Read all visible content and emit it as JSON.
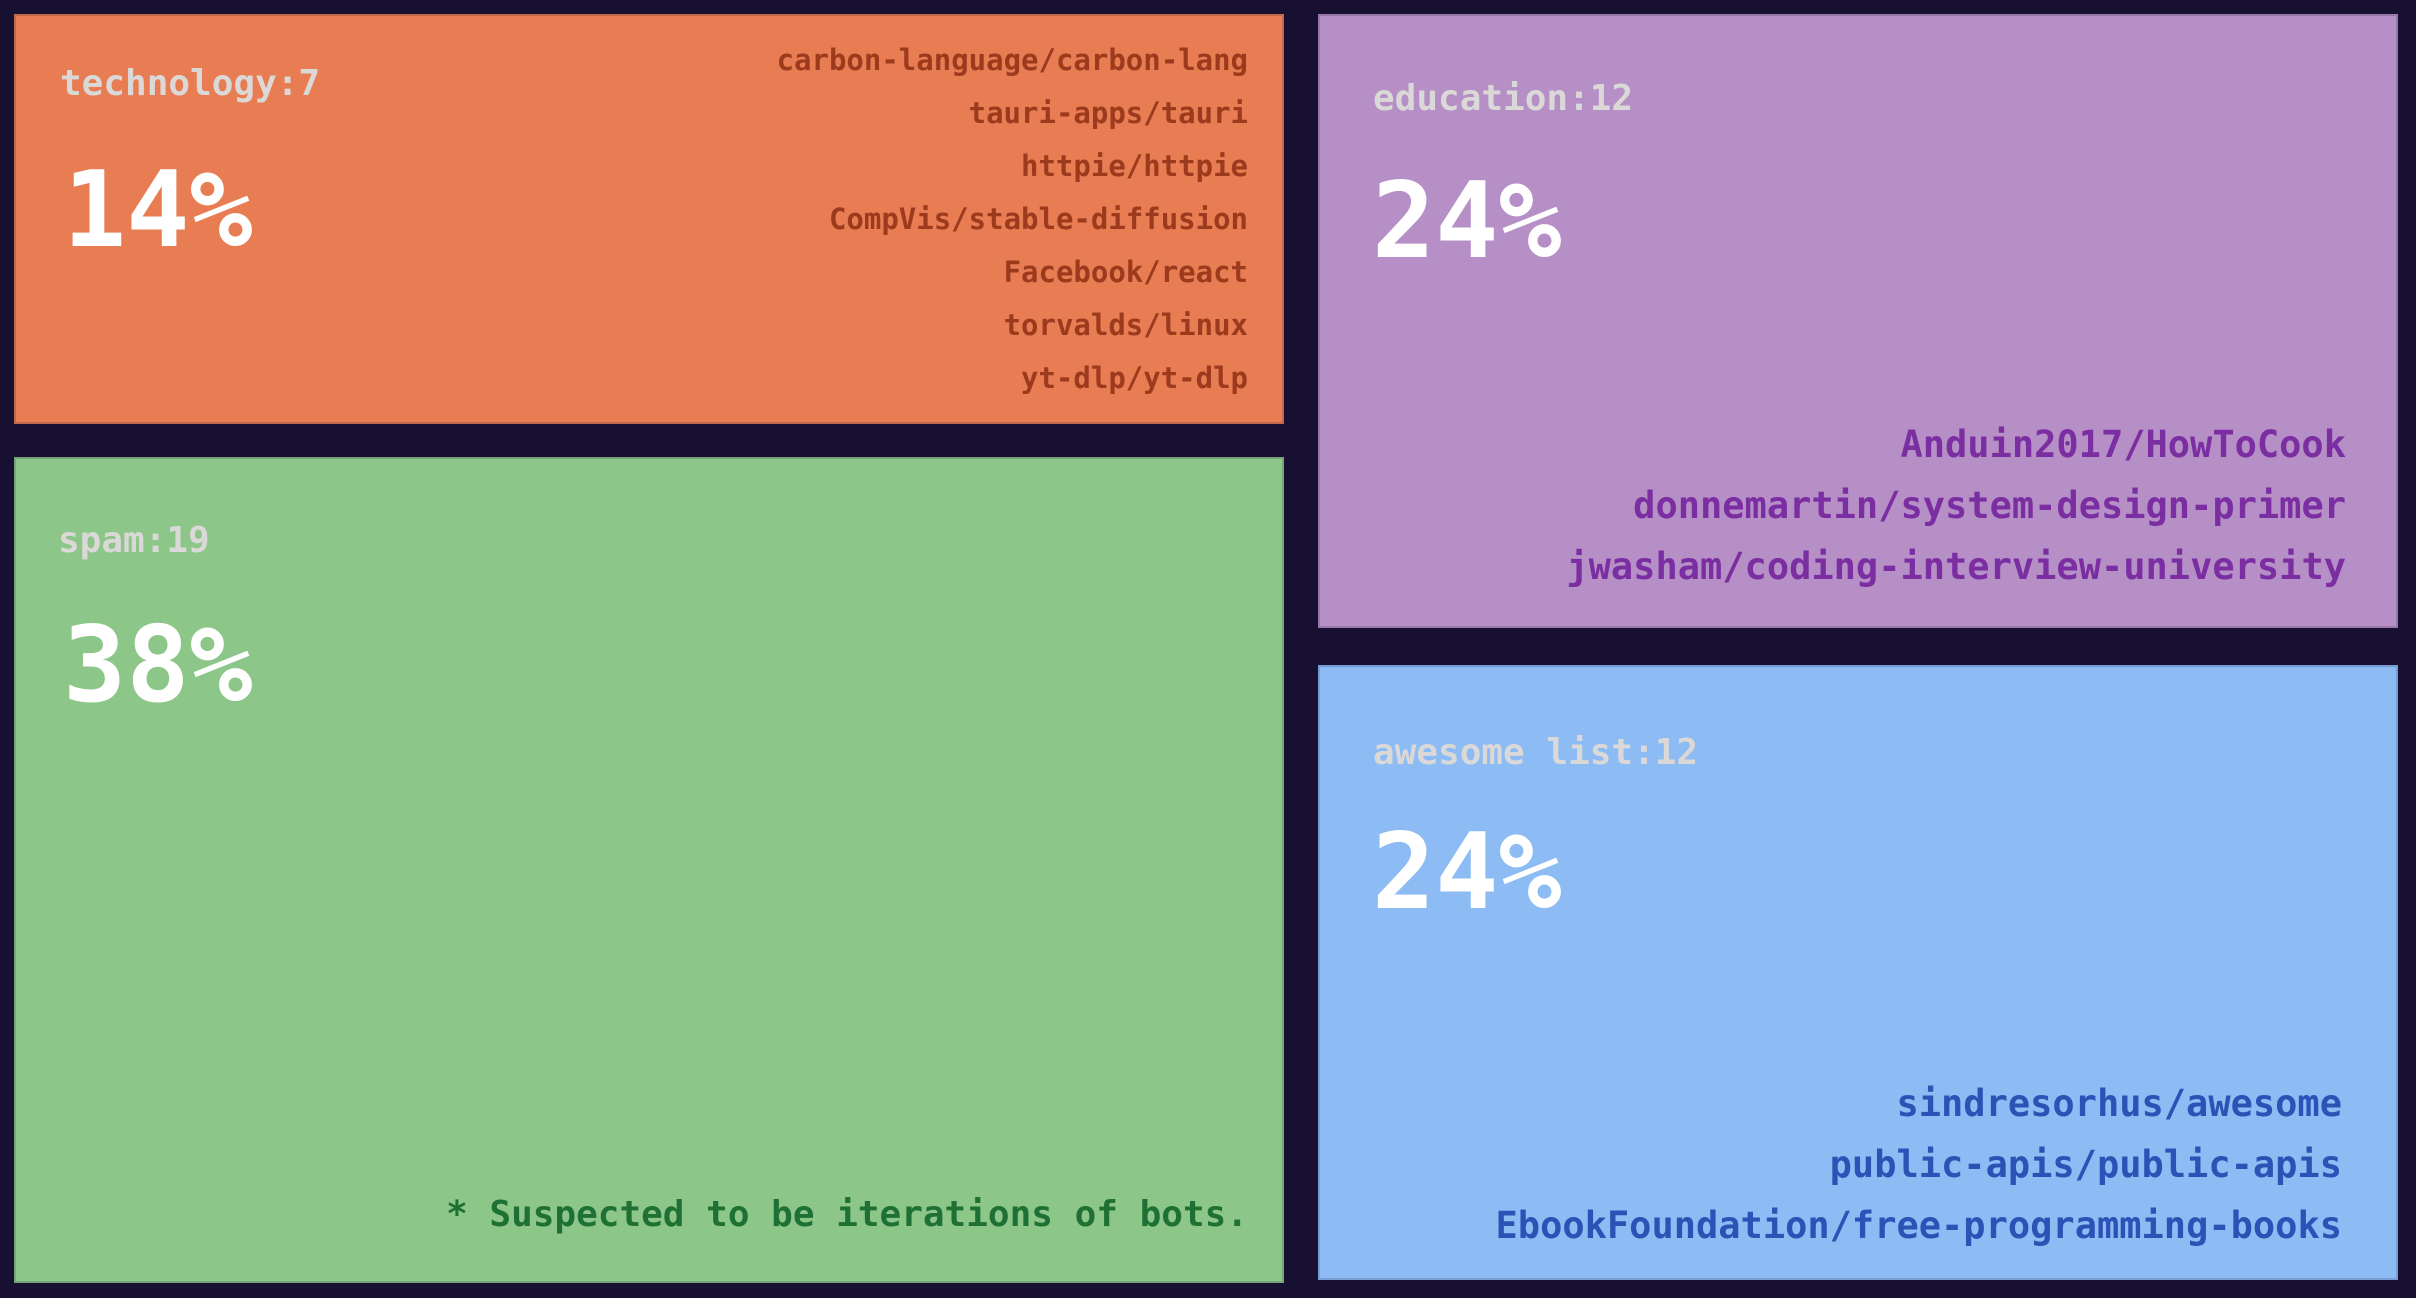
{
  "chart_data": {
    "type": "treemap",
    "background": "#181031",
    "label_color": "#dbd8d8",
    "percent_color": "#ffffff",
    "legend_position": "none",
    "tiles": [
      {
        "name": "technology",
        "header": "technology:7",
        "count": 7,
        "percent": 14,
        "percent_label": "14%",
        "color": "#e87c52",
        "repo_color": "#9c3a1e",
        "repos": [
          "carbon-language/carbon-lang",
          "tauri-apps/tauri",
          "httpie/httpie",
          "CompVis/stable-diffusion",
          "Facebook/react",
          "torvalds/linux",
          "yt-dlp/yt-dlp"
        ]
      },
      {
        "name": "spam",
        "header": "spam:19",
        "count": 19,
        "percent": 38,
        "percent_label": "38%",
        "color": "#8dc689",
        "note": "* Suspected to be iterations of bots.",
        "note_color": "#1f7034",
        "repos": []
      },
      {
        "name": "education",
        "header": "education:12",
        "count": 12,
        "percent": 24,
        "percent_label": "24%",
        "color": "#b58fc5",
        "repo_color": "#7b2da2",
        "repos": [
          "Anduin2017/HowToCook",
          "donnemartin/system-design-primer",
          "jwasham/coding-interview-university"
        ]
      },
      {
        "name": "awesome list",
        "header": "awesome list:12",
        "count": 12,
        "percent": 24,
        "percent_label": "24%",
        "color": "#8dbbf4",
        "repo_color": "#2d52b6",
        "repos": [
          "sindresorhus/awesome",
          "public-apis/public-apis",
          "EbookFoundation/free-programming-books"
        ]
      }
    ]
  }
}
